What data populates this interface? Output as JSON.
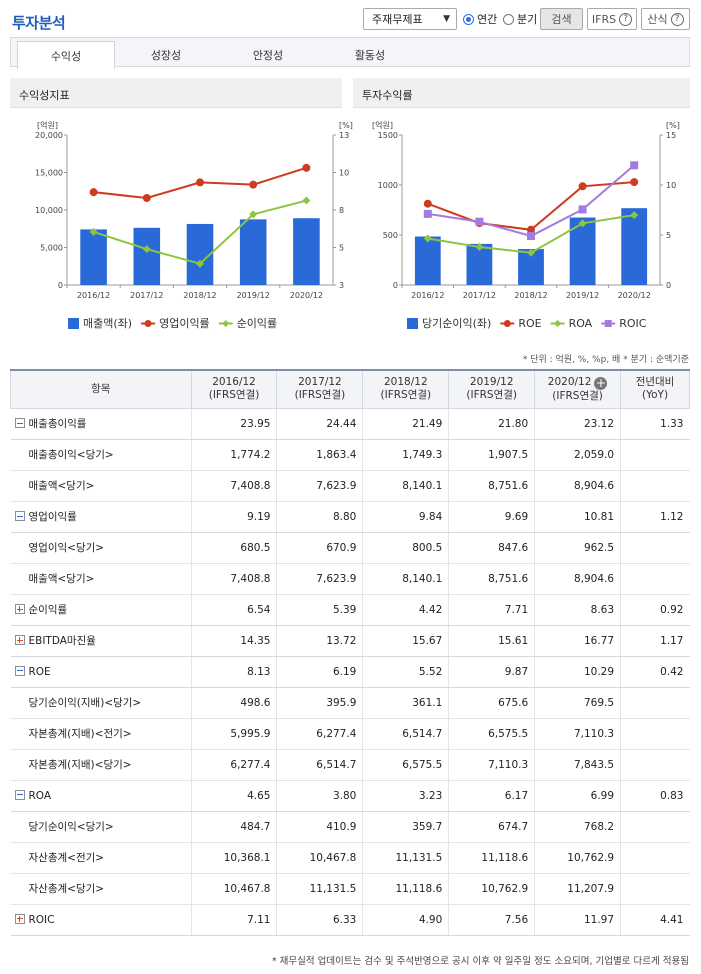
{
  "header": {
    "title": "투자분석",
    "select_value": "주재무제표",
    "radio_annual": "연간",
    "radio_quarter": "분기",
    "search_label": "검색",
    "ifrs_label": "IFRS",
    "formula_label": "산식",
    "help_glyph": "?"
  },
  "tabs": [
    {
      "label": "수익성"
    },
    {
      "label": "성장성"
    },
    {
      "label": "안정성"
    },
    {
      "label": "활동성"
    }
  ],
  "chart_data": [
    {
      "type": "bar",
      "title": "수익성지표",
      "left_unit": "[억원]",
      "right_unit": "[%]",
      "categories": [
        "2016/12",
        "2017/12",
        "2018/12",
        "2019/12",
        "2020/12"
      ],
      "y_ticks": [
        "20,000",
        "15,000",
        "10,000",
        "5,000",
        "0"
      ],
      "y2_ticks": [
        "13",
        "10",
        "8",
        "5",
        "3"
      ],
      "ylim": [
        0,
        20000
      ],
      "y2lim": [
        3,
        13
      ],
      "series": [
        {
          "name": "매출액(좌)",
          "type": "bar",
          "axis": "left",
          "color": "#2a6ad8",
          "values": [
            7408.8,
            7623.9,
            8140.1,
            8751.6,
            8904.6
          ]
        },
        {
          "name": "영업이익률",
          "type": "line",
          "axis": "right",
          "color": "#cf3b1e",
          "values": [
            9.19,
            8.8,
            9.84,
            9.69,
            10.81
          ]
        },
        {
          "name": "순이익률",
          "type": "line",
          "axis": "right",
          "color": "#8cc63f",
          "values": [
            6.54,
            5.39,
            4.42,
            7.71,
            8.63
          ]
        }
      ]
    },
    {
      "type": "bar",
      "title": "투자수익률",
      "left_unit": "[억원]",
      "right_unit": "[%]",
      "categories": [
        "2016/12",
        "2017/12",
        "2018/12",
        "2019/12",
        "2020/12"
      ],
      "y_ticks": [
        "1500",
        "1000",
        "500",
        "0"
      ],
      "y2_ticks": [
        "15",
        "10",
        "5",
        "0"
      ],
      "ylim": [
        0,
        1500
      ],
      "y2lim": [
        0,
        15
      ],
      "series": [
        {
          "name": "당기순이익(좌)",
          "type": "bar",
          "axis": "left",
          "color": "#2a6ad8",
          "values": [
            484.7,
            410.9,
            359.7,
            674.7,
            768.2
          ]
        },
        {
          "name": "ROE",
          "type": "line",
          "axis": "right",
          "color": "#cf3b1e",
          "values": [
            8.13,
            6.19,
            5.52,
            9.87,
            10.29
          ]
        },
        {
          "name": "ROA",
          "type": "line",
          "axis": "right",
          "color": "#8cc63f",
          "values": [
            4.65,
            3.8,
            3.23,
            6.17,
            6.99
          ]
        },
        {
          "name": "ROIC",
          "type": "line",
          "axis": "right",
          "color": "#a27be0",
          "values": [
            7.11,
            6.33,
            4.9,
            7.56,
            11.97
          ]
        }
      ]
    }
  ],
  "unit_note": "* 단위 : 억원, %, %p, 배   * 분기 : 순액기준",
  "table": {
    "headers": [
      {
        "line1": "항목",
        "line2": ""
      },
      {
        "line1": "2016/12",
        "line2": "(IFRS연결)"
      },
      {
        "line1": "2017/12",
        "line2": "(IFRS연결)"
      },
      {
        "line1": "2018/12",
        "line2": "(IFRS연결)"
      },
      {
        "line1": "2019/12",
        "line2": "(IFRS연결)"
      },
      {
        "line1": "2020/12",
        "line2": "(IFRS연결)"
      },
      {
        "line1": "전년대비",
        "line2": "(YoY)"
      }
    ],
    "rows": [
      {
        "label": "매출총이익률",
        "kind": "minus",
        "values": [
          "23.95",
          "24.44",
          "21.49",
          "21.80",
          "23.12",
          "1.33"
        ]
      },
      {
        "label": "매출총이익<당기>",
        "kind": "sub",
        "values": [
          "1,774.2",
          "1,863.4",
          "1,749.3",
          "1,907.5",
          "2,059.0",
          ""
        ]
      },
      {
        "label": "매출액<당기>",
        "kind": "sub",
        "values": [
          "7,408.8",
          "7,623.9",
          "8,140.1",
          "8,751.6",
          "8,904.6",
          ""
        ]
      },
      {
        "label": "영업이익률",
        "kind": "minus",
        "values": [
          "9.19",
          "8.80",
          "9.84",
          "9.69",
          "10.81",
          "1.12"
        ]
      },
      {
        "label": "영업이익<당기>",
        "kind": "sub",
        "values": [
          "680.5",
          "670.9",
          "800.5",
          "847.6",
          "962.5",
          ""
        ]
      },
      {
        "label": "매출액<당기>",
        "kind": "sub",
        "values": [
          "7,408.8",
          "7,623.9",
          "8,140.1",
          "8,751.6",
          "8,904.6",
          ""
        ]
      },
      {
        "label": "순이익률",
        "kind": "plus",
        "values": [
          "6.54",
          "5.39",
          "4.42",
          "7.71",
          "8.63",
          "0.92"
        ]
      },
      {
        "label": "EBITDA마진율",
        "kind": "plus",
        "values": [
          "14.35",
          "13.72",
          "15.67",
          "15.61",
          "16.77",
          "1.17"
        ]
      },
      {
        "label": "ROE",
        "kind": "minus",
        "values": [
          "8.13",
          "6.19",
          "5.52",
          "9.87",
          "10.29",
          "0.42"
        ]
      },
      {
        "label": "당기순이익(지배)<당기>",
        "kind": "sub",
        "values": [
          "498.6",
          "395.9",
          "361.1",
          "675.6",
          "769.5",
          ""
        ]
      },
      {
        "label": "자본총계(지배)<전기>",
        "kind": "sub",
        "values": [
          "5,995.9",
          "6,277.4",
          "6,514.7",
          "6,575.5",
          "7,110.3",
          ""
        ]
      },
      {
        "label": "자본총계(지배)<당기>",
        "kind": "sub",
        "values": [
          "6,277.4",
          "6,514.7",
          "6,575.5",
          "7,110.3",
          "7,843.5",
          ""
        ]
      },
      {
        "label": "ROA",
        "kind": "minus",
        "values": [
          "4.65",
          "3.80",
          "3.23",
          "6.17",
          "6.99",
          "0.83"
        ]
      },
      {
        "label": "당기순이익<당기>",
        "kind": "sub",
        "values": [
          "484.7",
          "410.9",
          "359.7",
          "674.7",
          "768.2",
          ""
        ]
      },
      {
        "label": "자산총계<전기>",
        "kind": "sub",
        "values": [
          "10,368.1",
          "10,467.8",
          "11,131.5",
          "11,118.6",
          "10,762.9",
          ""
        ]
      },
      {
        "label": "자산총계<당기>",
        "kind": "sub",
        "values": [
          "10,467.8",
          "11,131.5",
          "11,118.6",
          "10,762.9",
          "11,207.9",
          ""
        ]
      },
      {
        "label": "ROIC",
        "kind": "plus",
        "values": [
          "7.11",
          "6.33",
          "4.90",
          "7.56",
          "11.97",
          "4.41"
        ]
      }
    ]
  },
  "footnote": "* 재무실적 업데이트는 검수 및 주석반영으로 공시 이후 약 일주일 정도 소요되며, 기업별로 다르게 적용됨"
}
